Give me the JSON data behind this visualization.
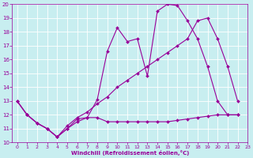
{
  "xlabel": "Windchill (Refroidissement éolien,°C)",
  "bg_color": "#c8eef0",
  "line_color": "#990099",
  "grid_color": "#aadddd",
  "xlim": [
    -0.5,
    23
  ],
  "ylim": [
    10,
    20
  ],
  "xticks": [
    0,
    1,
    2,
    3,
    4,
    5,
    6,
    7,
    8,
    9,
    10,
    11,
    12,
    13,
    14,
    15,
    16,
    17,
    18,
    19,
    20,
    21,
    22,
    23
  ],
  "yticks": [
    10,
    11,
    12,
    13,
    14,
    15,
    16,
    17,
    18,
    19,
    20
  ],
  "line1_x": [
    0,
    1,
    2,
    3,
    4,
    5,
    6,
    7,
    8,
    9,
    10,
    11,
    12,
    13,
    14,
    15,
    16,
    17,
    18,
    19,
    20,
    21,
    22
  ],
  "line1_y": [
    13,
    12,
    11.4,
    11,
    10.4,
    11,
    11.5,
    11.8,
    11.8,
    11.5,
    11.5,
    11.5,
    11.5,
    11.5,
    11.5,
    11.5,
    11.6,
    11.7,
    11.8,
    11.9,
    12.0,
    12.0,
    12.0
  ],
  "line2_x": [
    0,
    1,
    2,
    3,
    4,
    5,
    6,
    7,
    8,
    9,
    10,
    11,
    12,
    13,
    14,
    15,
    16,
    17,
    18,
    19,
    20,
    21,
    22
  ],
  "line2_y": [
    13,
    12,
    11.4,
    11,
    10.4,
    11,
    11.7,
    11.8,
    13.1,
    16.6,
    18.3,
    17.3,
    17.5,
    14.8,
    19.5,
    20.0,
    19.9,
    18.8,
    17.5,
    15.5,
    13.0,
    12.0,
    12.0
  ],
  "line3_x": [
    0,
    1,
    2,
    3,
    4,
    5,
    6,
    7,
    8,
    9,
    10,
    11,
    12,
    13,
    14,
    15,
    16,
    17,
    18,
    19,
    20,
    21,
    22
  ],
  "line3_y": [
    13,
    12,
    11.4,
    11,
    10.4,
    11.2,
    11.8,
    12.2,
    12.8,
    13.3,
    14.0,
    14.5,
    15.0,
    15.5,
    16.0,
    16.5,
    17.0,
    17.5,
    18.8,
    19.0,
    17.5,
    15.5,
    13.0
  ]
}
